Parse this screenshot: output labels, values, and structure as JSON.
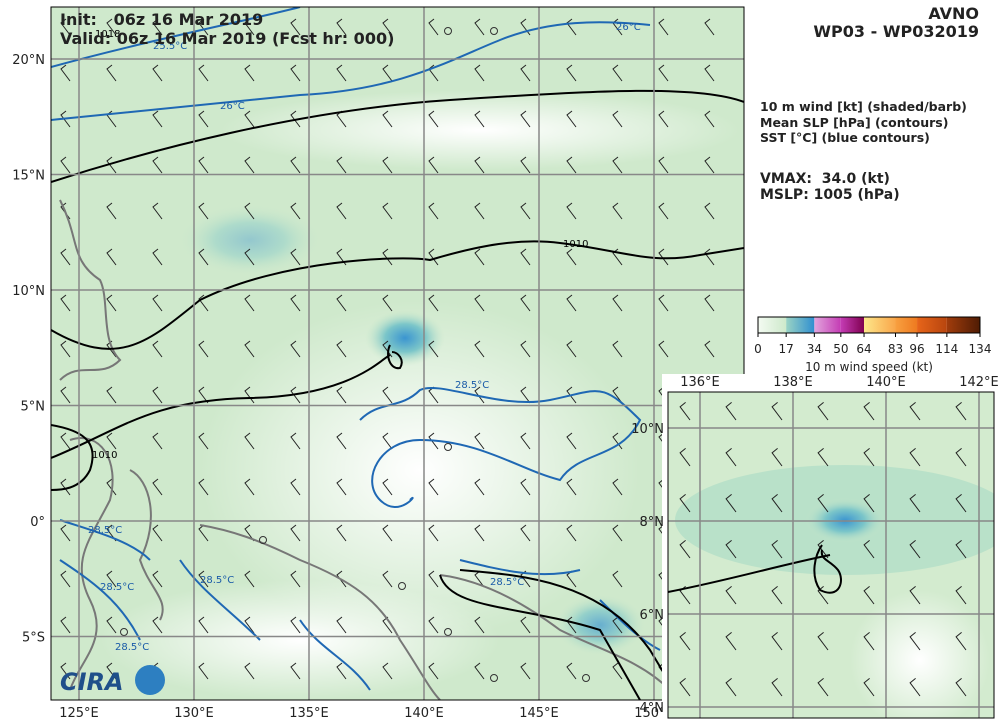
{
  "header": {
    "init": "Init:   06z 16 Mar 2019",
    "valid": "Valid: 06z 16 Mar 2019 (Fcst hr: 000)",
    "model": "AVNO",
    "storm": "WP03 - WP032019"
  },
  "legend": {
    "fields": [
      "10 m wind [kt] (shaded/barb)",
      "Mean SLP [hPa] (contours)",
      "SST [°C] (blue contours)"
    ],
    "vmax": "VMAX:  34.0 (kt)",
    "mslp": "MSLP: 1005 (hPa)"
  },
  "colorbar": {
    "ticks": [
      0,
      17,
      34,
      50,
      64,
      83,
      96,
      114,
      134
    ],
    "label": "10 m wind speed (kt)"
  },
  "map": {
    "lon_labels": [
      "125°E",
      "130°E",
      "135°E",
      "140°E",
      "145°E",
      "150°E"
    ],
    "lat_labels": [
      "20°N",
      "15°N",
      "10°N",
      "5°N",
      "0°",
      "5°S"
    ],
    "contour_labels": [
      "1010",
      "1010",
      "1018",
      "26°C",
      "26°C",
      "25.5°C",
      "28.5°C",
      "28.5°C",
      "28.5°C",
      "28.5°C",
      "28.5°C",
      "28.5°C"
    ]
  },
  "inset": {
    "lon_labels": [
      "136°E",
      "138°E",
      "140°E",
      "142°E"
    ],
    "lat_labels": [
      "10°N",
      "8°N",
      "6°N",
      "4°N"
    ]
  }
}
